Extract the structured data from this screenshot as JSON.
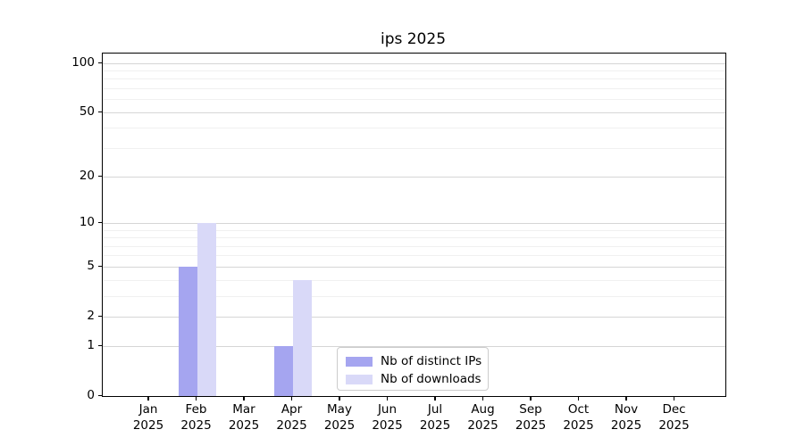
{
  "chart_data": {
    "type": "bar",
    "title": "ips 2025",
    "categories": [
      "Jan",
      "Feb",
      "Mar",
      "Apr",
      "May",
      "Jun",
      "Jul",
      "Aug",
      "Sep",
      "Oct",
      "Nov",
      "Dec"
    ],
    "category_year": "2025",
    "series": [
      {
        "name": "Nb of distinct IPs",
        "color": "#a5a5f0",
        "values": [
          0,
          5,
          0,
          1,
          0,
          0,
          0,
          0,
          0,
          0,
          0,
          0
        ]
      },
      {
        "name": "Nb of downloads",
        "color": "#d9d9f8",
        "values": [
          0,
          10,
          0,
          4,
          0,
          0,
          0,
          0,
          0,
          0,
          0,
          0
        ]
      }
    ],
    "xlabel": "",
    "ylabel": "",
    "yscale": "log1p",
    "ylim": [
      0,
      115
    ],
    "y_major_ticks": [
      0,
      1,
      2,
      5,
      10,
      20,
      50,
      100
    ],
    "y_minor_ticks": [
      3,
      4,
      6,
      7,
      8,
      9,
      30,
      40,
      60,
      70,
      80,
      90
    ],
    "grid": true,
    "legend_position": "lower center"
  },
  "colors": {
    "background": "#ffffff",
    "axis": "#000000",
    "grid_major": "#d6d6d6",
    "grid_minor": "#f0f0f0",
    "text": "#000000",
    "legend_border": "#cccccc"
  }
}
